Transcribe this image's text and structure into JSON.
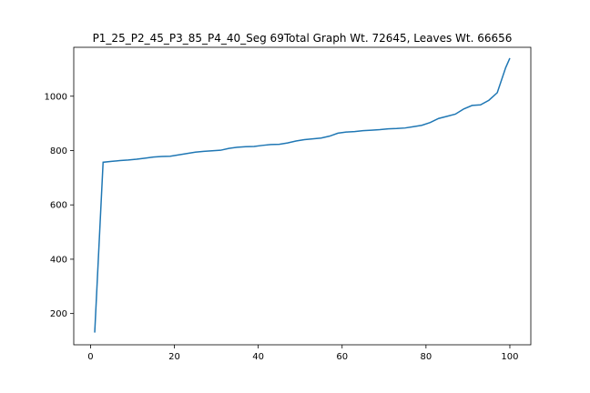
{
  "chart_data": {
    "type": "line",
    "title": "P1_25_P2_45_P3_85_P4_40_Seg 69Total Graph Wt. 72645, Leaves Wt. 66656",
    "xlabel": "",
    "ylabel": "",
    "xlim": [
      -4.0,
      105.0
    ],
    "ylim": [
      85,
      1180
    ],
    "xticks": [
      0,
      20,
      40,
      60,
      80,
      100
    ],
    "yticks": [
      200,
      400,
      600,
      800,
      1000
    ],
    "grid": false,
    "legend": "none",
    "line_color": "#1f77b4",
    "series": [
      {
        "x": [
          1,
          3,
          5,
          7,
          9,
          11,
          13,
          15,
          17,
          19,
          21,
          23,
          25,
          27,
          29,
          31,
          33,
          35,
          37,
          39,
          41,
          43,
          45,
          47,
          49,
          51,
          53,
          55,
          57,
          59,
          61,
          63,
          65,
          67,
          69,
          71,
          73,
          75,
          77,
          79,
          81,
          83,
          85,
          87,
          89,
          91,
          93,
          95,
          97,
          99,
          100
        ],
        "y": [
          130,
          757,
          760,
          763,
          765,
          768,
          772,
          776,
          778,
          779,
          784,
          789,
          794,
          797,
          799,
          801,
          808,
          812,
          814,
          815,
          819,
          822,
          823,
          828,
          835,
          840,
          843,
          846,
          853,
          864,
          868,
          870,
          873,
          875,
          877,
          880,
          881,
          883,
          888,
          893,
          903,
          918,
          926,
          934,
          953,
          966,
          968,
          985,
          1013,
          1105,
          1140
        ]
      }
    ]
  }
}
